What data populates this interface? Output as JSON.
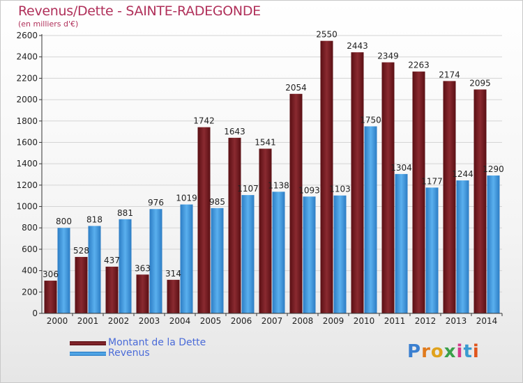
{
  "chart_data": {
    "type": "bar",
    "title": "Revenus/Dette - SAINTE-RADEGONDE",
    "subtitle": "(en milliers d'€)",
    "categories": [
      "2000",
      "2001",
      "2002",
      "2003",
      "2004",
      "2005",
      "2006",
      "2007",
      "2008",
      "2009",
      "2010",
      "2011",
      "2012",
      "2013",
      "2014"
    ],
    "series": [
      {
        "name": "Montant de la Dette",
        "color": "#7a1c22",
        "values": [
          306,
          528,
          437,
          363,
          314,
          1742,
          1643,
          1541,
          2054,
          2550,
          2443,
          2349,
          2263,
          2174,
          2095
        ]
      },
      {
        "name": "Revenus",
        "color": "#3c9ae0",
        "values": [
          800,
          818,
          881,
          976,
          1019,
          985,
          1107,
          1138,
          1093,
          1103,
          1750,
          1304,
          1177,
          1244,
          1290
        ]
      }
    ],
    "ylim": [
      0,
      2600
    ],
    "yticks": [
      0,
      200,
      400,
      600,
      800,
      1000,
      1200,
      1400,
      1600,
      1800,
      2000,
      2200,
      2400,
      2600
    ],
    "grid": true,
    "legend_position": "bottom-left"
  },
  "logo": {
    "text": "Proxiti"
  }
}
